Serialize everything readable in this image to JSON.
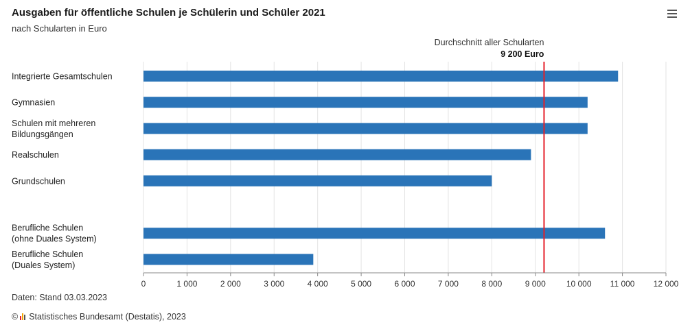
{
  "header": {
    "title": "Ausgaben für öffentliche Schulen je Schülerin und Schüler 2021",
    "subtitle": "nach Schularten in Euro"
  },
  "reference": {
    "label": "Durchschnitt aller Schularten",
    "value_label": "9 200 Euro",
    "value": 9200,
    "color": "#e5202a"
  },
  "footer": {
    "data_note": "Daten: Stand 03.03.2023",
    "copyright_symbol": "©",
    "source": "Statistisches Bundesamt (Destatis), 2023"
  },
  "chart_data": {
    "type": "bar",
    "orientation": "horizontal",
    "categories": [
      [
        "Integrierte Gesamtschulen"
      ],
      [
        "Gymnasien"
      ],
      [
        "Schulen mit mehreren",
        "Bildungsgängen"
      ],
      [
        "Realschulen"
      ],
      [
        "Grundschulen"
      ],
      [],
      [
        "Berufliche Schulen",
        "(ohne Duales System)"
      ],
      [
        "Berufliche Schulen",
        "(Duales System)"
      ]
    ],
    "values": [
      10900,
      10200,
      10200,
      8900,
      8000,
      null,
      10600,
      3900
    ],
    "xlim": [
      0,
      12000
    ],
    "xticks": [
      0,
      1000,
      2000,
      3000,
      4000,
      5000,
      6000,
      7000,
      8000,
      9000,
      10000,
      11000,
      12000
    ],
    "xtick_labels": [
      "0",
      "1 000",
      "2 000",
      "3 000",
      "4 000",
      "5 000",
      "6 000",
      "7 000",
      "8 000",
      "9 000",
      "10 000",
      "11 000",
      "12 000"
    ],
    "grid": true,
    "bar_color": "#2a74b8",
    "grid_color": "#e3e3e3",
    "axis_color": "#888888"
  }
}
